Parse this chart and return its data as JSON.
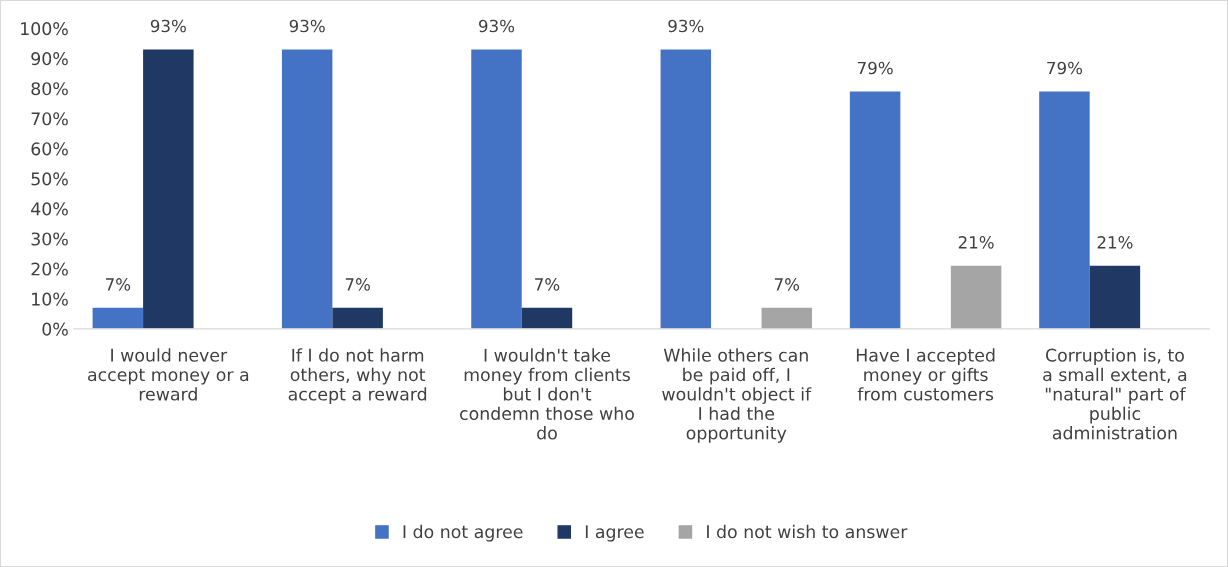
{
  "chart_data": {
    "type": "bar",
    "categories": [
      "I would never accept money or a reward",
      "If I do not harm others, why not accept a reward",
      "I wouldn't take money from clients but I don't condemn those who do",
      "While others can be paid off, I wouldn't object if I had the opportunity",
      "Have I accepted money or gifts from customers",
      "Corruption is, to a small extent, a \"natural\" part of public administration"
    ],
    "series": [
      {
        "name": "I do not agree",
        "color": "#4472c4",
        "values": [
          7,
          93,
          93,
          93,
          79,
          79
        ],
        "value_labels": [
          "7%",
          "93%",
          "93%",
          "93%",
          "79%",
          "79%"
        ]
      },
      {
        "name": "I agree",
        "color": "#203864",
        "values": [
          93,
          7,
          7,
          null,
          null,
          21
        ],
        "value_labels": [
          "93%",
          "7%",
          "7%",
          null,
          null,
          "21%"
        ]
      },
      {
        "name": "I do not wish to answer",
        "color": "#a5a5a5",
        "values": [
          null,
          null,
          null,
          7,
          21,
          null
        ],
        "value_labels": [
          null,
          null,
          null,
          "7%",
          "21%",
          null
        ]
      }
    ],
    "ylim": [
      0,
      100
    ],
    "yticks": [
      {
        "value": 0,
        "label": "0%"
      },
      {
        "value": 10,
        "label": "10%"
      },
      {
        "value": 20,
        "label": "20%"
      },
      {
        "value": 30,
        "label": "30%"
      },
      {
        "value": 40,
        "label": "40%"
      },
      {
        "value": 50,
        "label": "50%"
      },
      {
        "value": 60,
        "label": "60%"
      },
      {
        "value": 70,
        "label": "70%"
      },
      {
        "value": 80,
        "label": "80%"
      },
      {
        "value": 90,
        "label": "90%"
      },
      {
        "value": 100,
        "label": "100%"
      }
    ],
    "grid": false,
    "legend": "bottom"
  }
}
